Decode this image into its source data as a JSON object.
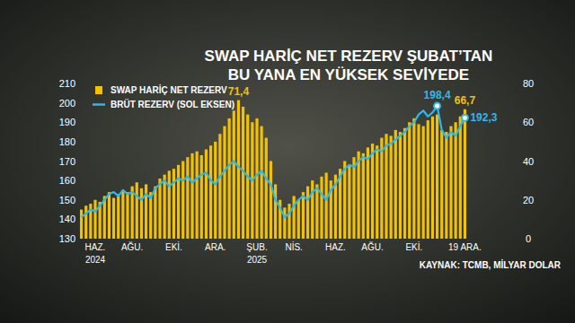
{
  "chart_data": {
    "type": "bar",
    "title": "SWAP HARİÇ NET REZERV ŞUBAT’TAN\nBU YANA EN YÜKSEK SEVİYEDE",
    "source": "KAYNAK: TCMB, MİLYAR DOLAR",
    "categories": [
      null,
      null,
      null,
      "HAZ.\n2024",
      null,
      null,
      null,
      null,
      null,
      null,
      null,
      "AĞU.",
      null,
      null,
      null,
      null,
      null,
      null,
      null,
      null,
      "EKİ.",
      null,
      null,
      null,
      null,
      null,
      null,
      null,
      null,
      "ARA.",
      null,
      null,
      null,
      null,
      null,
      null,
      null,
      null,
      "ŞUB.\n2025",
      null,
      null,
      null,
      null,
      null,
      null,
      null,
      "NİS.",
      null,
      null,
      null,
      null,
      null,
      null,
      null,
      null,
      "HAZ.",
      null,
      null,
      null,
      null,
      null,
      null,
      null,
      "AĞU.",
      null,
      null,
      null,
      null,
      null,
      null,
      null,
      null,
      "EKİ.",
      null,
      null,
      null,
      null,
      null,
      null,
      null,
      null,
      null,
      null,
      "19 ARA."
    ],
    "series": [
      {
        "name": "SWAP HARİÇ NET REZERV",
        "type": "bar",
        "axis": "y2",
        "color": "#f2c200",
        "values": [
          15,
          17,
          18,
          20,
          19,
          22,
          24,
          21,
          23,
          25,
          24,
          27,
          29,
          26,
          28,
          24,
          27,
          31,
          33,
          35,
          36,
          38,
          40,
          42,
          44,
          45,
          43,
          46,
          48,
          50,
          54,
          58,
          62,
          66,
          71.4,
          68,
          64,
          60,
          62,
          58,
          52,
          40,
          28,
          20,
          16,
          18,
          22,
          20,
          24,
          27,
          30,
          28,
          32,
          34,
          30,
          33,
          36,
          40,
          38,
          42,
          45,
          44,
          47,
          49,
          48,
          52,
          54,
          53,
          56,
          55,
          57,
          60,
          62,
          59,
          58,
          61,
          63,
          64,
          56,
          55,
          58,
          60,
          63,
          66.7
        ],
        "value_labels": [
          null,
          null,
          null,
          null,
          null,
          null,
          null,
          null,
          null,
          null,
          null,
          null,
          null,
          null,
          null,
          null,
          null,
          null,
          null,
          null,
          null,
          null,
          null,
          null,
          null,
          null,
          null,
          null,
          null,
          null,
          null,
          null,
          null,
          null,
          "71,4",
          null,
          null,
          null,
          null,
          null,
          null,
          null,
          null,
          null,
          null,
          null,
          null,
          null,
          null,
          null,
          null,
          null,
          null,
          null,
          null,
          null,
          null,
          null,
          null,
          null,
          null,
          null,
          null,
          null,
          null,
          null,
          null,
          null,
          null,
          null,
          null,
          null,
          null,
          null,
          null,
          null,
          null,
          null,
          null,
          null,
          null,
          null,
          null,
          "66,7"
        ]
      },
      {
        "name": "BRÜT REZERV (SOL EKSEN)",
        "type": "line",
        "axis": "y",
        "color": "#2fb8ee",
        "values": [
          141,
          143,
          145,
          144,
          147,
          150,
          153,
          154,
          152,
          155,
          153,
          154,
          152,
          150,
          153,
          151,
          156,
          158,
          160,
          157,
          159,
          161,
          160,
          162,
          159,
          161,
          163,
          164,
          160,
          158,
          162,
          165,
          168,
          170,
          167,
          165,
          162,
          160,
          163,
          165,
          161,
          158,
          150,
          146,
          141,
          143,
          147,
          150,
          152,
          150,
          154,
          156,
          153,
          150,
          155,
          158,
          162,
          166,
          168,
          167,
          170,
          172,
          171,
          174,
          176,
          175,
          178,
          179,
          181,
          183,
          185,
          188,
          190,
          194,
          196,
          193,
          195,
          198.4,
          186,
          182,
          185,
          183,
          188,
          192.3
        ],
        "value_labels": [
          null,
          null,
          null,
          null,
          null,
          null,
          null,
          null,
          null,
          null,
          null,
          null,
          null,
          null,
          null,
          null,
          null,
          null,
          null,
          null,
          null,
          null,
          null,
          null,
          null,
          null,
          null,
          null,
          null,
          null,
          null,
          null,
          null,
          null,
          null,
          null,
          null,
          null,
          null,
          null,
          null,
          null,
          null,
          null,
          null,
          null,
          null,
          null,
          null,
          null,
          null,
          null,
          null,
          null,
          null,
          null,
          null,
          null,
          null,
          null,
          null,
          null,
          null,
          null,
          null,
          null,
          null,
          null,
          null,
          null,
          null,
          null,
          null,
          null,
          null,
          null,
          null,
          "198,4",
          null,
          null,
          null,
          null,
          null,
          "192,3"
        ]
      }
    ],
    "ylim": [
      130,
      210
    ],
    "yticks": [
      130,
      140,
      150,
      160,
      170,
      180,
      190,
      200,
      210
    ],
    "y2lim": [
      0,
      80
    ],
    "y2ticks": [
      0,
      20,
      40,
      60,
      80
    ],
    "grid": false,
    "legend": "top-left"
  }
}
